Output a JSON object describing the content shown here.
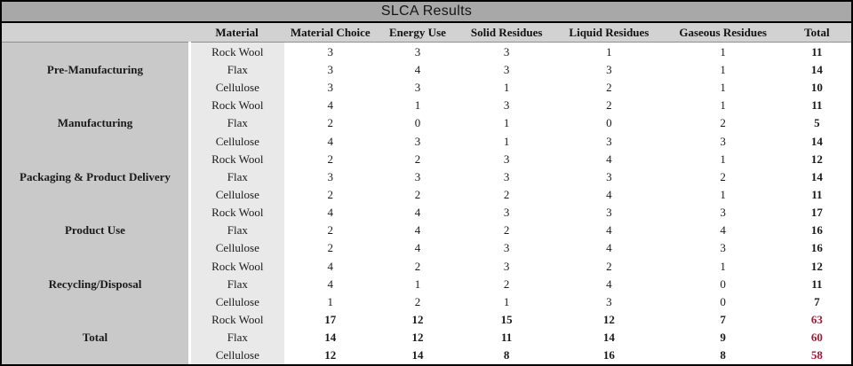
{
  "title": "SLCA Results",
  "colors": {
    "title_bar_bg": "#a8a8a8",
    "header_bg": "#d2d2d2",
    "stage_col_bg": "#c9c9c9",
    "material_col_bg": "#e9e9e9",
    "grand_total_text": "#9e1b32",
    "border": "#000000"
  },
  "chart_data": {
    "type": "table",
    "title": "SLCA Results",
    "columns": [
      "Material",
      "Material Choice",
      "Energy Use",
      "Solid Residues",
      "Liquid Residues",
      "Gaseous Residues",
      "Total"
    ],
    "stages": [
      {
        "label": "Pre-Manufacturing",
        "grand": false,
        "rows": [
          {
            "material": "Rock Wool",
            "values": [
              3,
              3,
              3,
              1,
              1
            ],
            "total": 11
          },
          {
            "material": "Flax",
            "values": [
              3,
              4,
              3,
              3,
              1
            ],
            "total": 14
          },
          {
            "material": "Cellulose",
            "values": [
              3,
              3,
              1,
              2,
              1
            ],
            "total": 10
          }
        ]
      },
      {
        "label": "Manufacturing",
        "grand": false,
        "rows": [
          {
            "material": "Rock Wool",
            "values": [
              4,
              1,
              3,
              2,
              1
            ],
            "total": 11
          },
          {
            "material": "Flax",
            "values": [
              2,
              0,
              1,
              0,
              2
            ],
            "total": 5
          },
          {
            "material": "Cellulose",
            "values": [
              4,
              3,
              1,
              3,
              3
            ],
            "total": 14
          }
        ]
      },
      {
        "label": "Packaging & Product Delivery",
        "grand": false,
        "rows": [
          {
            "material": "Rock Wool",
            "values": [
              2,
              2,
              3,
              4,
              1
            ],
            "total": 12
          },
          {
            "material": "Flax",
            "values": [
              3,
              3,
              3,
              3,
              2
            ],
            "total": 14
          },
          {
            "material": "Cellulose",
            "values": [
              2,
              2,
              2,
              4,
              1
            ],
            "total": 11
          }
        ]
      },
      {
        "label": "Product Use",
        "grand": false,
        "rows": [
          {
            "material": "Rock Wool",
            "values": [
              4,
              4,
              3,
              3,
              3
            ],
            "total": 17
          },
          {
            "material": "Flax",
            "values": [
              2,
              4,
              2,
              4,
              4
            ],
            "total": 16
          },
          {
            "material": "Cellulose",
            "values": [
              2,
              4,
              3,
              4,
              3
            ],
            "total": 16
          }
        ]
      },
      {
        "label": "Recycling/Disposal",
        "grand": false,
        "rows": [
          {
            "material": "Rock Wool",
            "values": [
              4,
              2,
              3,
              2,
              1
            ],
            "total": 12
          },
          {
            "material": "Flax",
            "values": [
              4,
              1,
              2,
              4,
              0
            ],
            "total": 11
          },
          {
            "material": "Cellulose",
            "values": [
              1,
              2,
              1,
              3,
              0
            ],
            "total": 7
          }
        ]
      },
      {
        "label": "Total",
        "grand": true,
        "rows": [
          {
            "material": "Rock Wool",
            "values": [
              17,
              12,
              15,
              12,
              7
            ],
            "total": 63
          },
          {
            "material": "Flax",
            "values": [
              14,
              12,
              11,
              14,
              9
            ],
            "total": 60
          },
          {
            "material": "Cellulose",
            "values": [
              12,
              14,
              8,
              16,
              8
            ],
            "total": 58
          }
        ]
      }
    ]
  }
}
